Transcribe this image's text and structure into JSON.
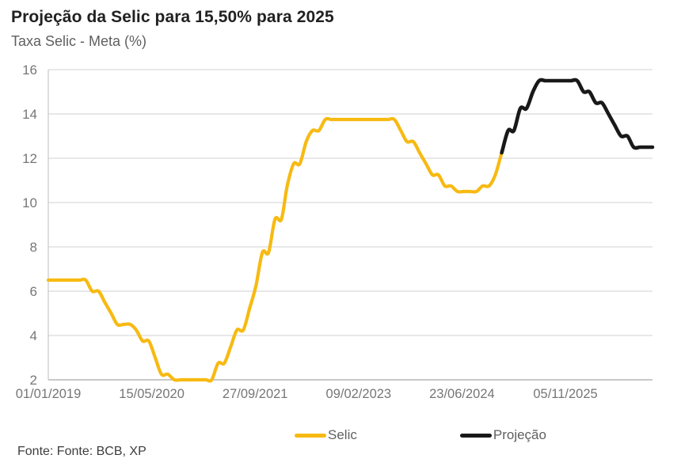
{
  "header": {
    "title": "Projeção da Selic para 15,50% para 2025",
    "subtitle": "Taxa Selic - Meta (%)"
  },
  "footer": {
    "source": "Fonte: Fonte: BCB, XP"
  },
  "legend": {
    "items": [
      {
        "label": "Selic",
        "color": "#F7BA12"
      },
      {
        "label": "Projeção",
        "color": "#191919"
      }
    ]
  },
  "colors": {
    "selic_line": "#F7BA12",
    "projection_line": "#191919",
    "gridline": "#d9d9d9",
    "axis_line": "#a9a9a9",
    "tick_text": "#767676"
  },
  "chart_data": {
    "type": "line",
    "title": "Projeção da Selic para 15,50% para 2025",
    "xlabel": "",
    "ylabel": "Taxa Selic - Meta (%)",
    "ylim": [
      2,
      16
    ],
    "y_ticks": [
      16,
      14,
      12,
      10,
      8,
      6,
      4,
      2
    ],
    "x_ticks": [
      "01/01/2019",
      "15/05/2020",
      "27/09/2021",
      "09/02/2023",
      "23/06/2024",
      "05/11/2025"
    ],
    "x_tick_dates": [
      "2019-01-01",
      "2020-05-15",
      "2021-09-27",
      "2023-02-09",
      "2024-06-23",
      "2025-11-05"
    ],
    "x_range": [
      "2019-01-01",
      "2026-12-31"
    ],
    "grid": "horizontal",
    "legend_position": "bottom",
    "series": [
      {
        "name": "Selic",
        "color": "#F7BA12",
        "points": [
          [
            "2019-01-01",
            6.5
          ],
          [
            "2019-02-01",
            6.5
          ],
          [
            "2019-03-01",
            6.5
          ],
          [
            "2019-04-01",
            6.5
          ],
          [
            "2019-05-01",
            6.5
          ],
          [
            "2019-06-01",
            6.5
          ],
          [
            "2019-07-01",
            6.5
          ],
          [
            "2019-08-01",
            6.0
          ],
          [
            "2019-09-01",
            6.0
          ],
          [
            "2019-10-01",
            5.5
          ],
          [
            "2019-11-01",
            5.0
          ],
          [
            "2019-12-01",
            4.5
          ],
          [
            "2020-01-01",
            4.5
          ],
          [
            "2020-02-01",
            4.5
          ],
          [
            "2020-03-01",
            4.25
          ],
          [
            "2020-04-01",
            3.75
          ],
          [
            "2020-05-01",
            3.75
          ],
          [
            "2020-06-01",
            3.0
          ],
          [
            "2020-07-01",
            2.25
          ],
          [
            "2020-08-01",
            2.25
          ],
          [
            "2020-09-01",
            2.0
          ],
          [
            "2020-10-01",
            2.0
          ],
          [
            "2020-11-01",
            2.0
          ],
          [
            "2020-12-01",
            2.0
          ],
          [
            "2021-01-01",
            2.0
          ],
          [
            "2021-02-01",
            2.0
          ],
          [
            "2021-03-01",
            2.0
          ],
          [
            "2021-04-01",
            2.75
          ],
          [
            "2021-05-01",
            2.75
          ],
          [
            "2021-06-01",
            3.5
          ],
          [
            "2021-07-01",
            4.25
          ],
          [
            "2021-08-01",
            4.25
          ],
          [
            "2021-09-01",
            5.25
          ],
          [
            "2021-10-01",
            6.25
          ],
          [
            "2021-11-01",
            7.75
          ],
          [
            "2021-12-01",
            7.75
          ],
          [
            "2022-01-01",
            9.25
          ],
          [
            "2022-02-01",
            9.25
          ],
          [
            "2022-03-01",
            10.75
          ],
          [
            "2022-04-01",
            11.75
          ],
          [
            "2022-05-01",
            11.75
          ],
          [
            "2022-06-01",
            12.75
          ],
          [
            "2022-07-01",
            13.25
          ],
          [
            "2022-08-01",
            13.25
          ],
          [
            "2022-09-01",
            13.75
          ],
          [
            "2022-10-01",
            13.75
          ],
          [
            "2022-11-01",
            13.75
          ],
          [
            "2022-12-01",
            13.75
          ],
          [
            "2023-01-01",
            13.75
          ],
          [
            "2023-02-01",
            13.75
          ],
          [
            "2023-03-01",
            13.75
          ],
          [
            "2023-04-01",
            13.75
          ],
          [
            "2023-05-01",
            13.75
          ],
          [
            "2023-06-01",
            13.75
          ],
          [
            "2023-07-01",
            13.75
          ],
          [
            "2023-08-01",
            13.75
          ],
          [
            "2023-09-01",
            13.25
          ],
          [
            "2023-10-01",
            12.75
          ],
          [
            "2023-11-01",
            12.75
          ],
          [
            "2023-12-01",
            12.25
          ],
          [
            "2024-01-01",
            11.75
          ],
          [
            "2024-02-01",
            11.25
          ],
          [
            "2024-03-01",
            11.25
          ],
          [
            "2024-04-01",
            10.75
          ],
          [
            "2024-05-01",
            10.75
          ],
          [
            "2024-06-01",
            10.5
          ],
          [
            "2024-07-01",
            10.5
          ],
          [
            "2024-08-01",
            10.5
          ],
          [
            "2024-09-01",
            10.5
          ],
          [
            "2024-10-01",
            10.75
          ],
          [
            "2024-11-01",
            10.75
          ],
          [
            "2024-12-01",
            11.25
          ],
          [
            "2025-01-01",
            12.25
          ]
        ]
      },
      {
        "name": "Projeção",
        "color": "#191919",
        "points": [
          [
            "2025-01-01",
            12.25
          ],
          [
            "2025-02-01",
            13.25
          ],
          [
            "2025-03-01",
            13.25
          ],
          [
            "2025-04-01",
            14.25
          ],
          [
            "2025-05-01",
            14.25
          ],
          [
            "2025-06-01",
            15.0
          ],
          [
            "2025-07-01",
            15.5
          ],
          [
            "2025-08-01",
            15.5
          ],
          [
            "2025-09-01",
            15.5
          ],
          [
            "2025-10-01",
            15.5
          ],
          [
            "2025-11-01",
            15.5
          ],
          [
            "2025-12-01",
            15.5
          ],
          [
            "2026-01-01",
            15.5
          ],
          [
            "2026-02-01",
            15.0
          ],
          [
            "2026-03-01",
            15.0
          ],
          [
            "2026-04-01",
            14.5
          ],
          [
            "2026-05-01",
            14.5
          ],
          [
            "2026-06-01",
            14.0
          ],
          [
            "2026-07-01",
            13.5
          ],
          [
            "2026-08-01",
            13.0
          ],
          [
            "2026-09-01",
            13.0
          ],
          [
            "2026-10-01",
            12.5
          ],
          [
            "2026-11-01",
            12.5
          ],
          [
            "2026-12-01",
            12.5
          ],
          [
            "2026-12-31",
            12.5
          ]
        ]
      }
    ]
  }
}
